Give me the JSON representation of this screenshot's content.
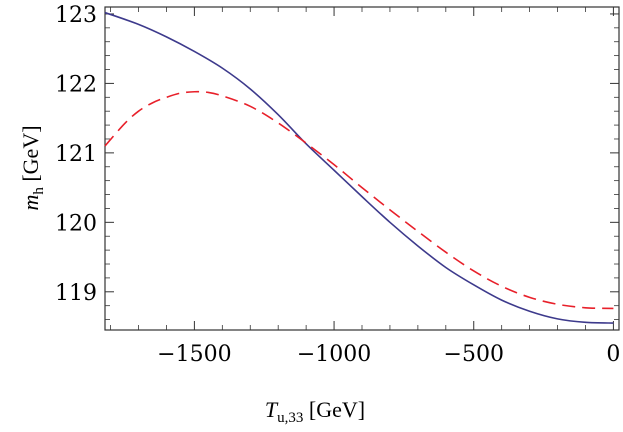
{
  "chart_data": {
    "type": "line",
    "title": "",
    "xlabel": {
      "symbol": "T",
      "subscript": "u,33",
      "unit": " [GeV]"
    },
    "ylabel": {
      "symbol": "m",
      "subscript": "h",
      "unit": " [GeV]"
    },
    "xlim": [
      -1820,
      20
    ],
    "ylim": [
      118.45,
      123.1
    ],
    "grid": false,
    "frame": true,
    "xticks": [
      -1500,
      -1000,
      -500,
      0
    ],
    "xtick_labels": [
      "−1500",
      "−1000",
      "−500",
      "0"
    ],
    "yticks": [
      119,
      120,
      121,
      122,
      123
    ],
    "ytick_labels": [
      "119",
      "120",
      "121",
      "122",
      "123"
    ],
    "series": [
      {
        "name": "solid",
        "color": "#3d3a8c",
        "dash": "solid",
        "x": [
          -1820,
          -1700,
          -1600,
          -1500,
          -1400,
          -1300,
          -1200,
          -1100,
          -1000,
          -900,
          -800,
          -700,
          -600,
          -500,
          -400,
          -300,
          -200,
          -100,
          0
        ],
        "y": [
          123.02,
          122.85,
          122.67,
          122.46,
          122.22,
          121.92,
          121.55,
          121.13,
          120.75,
          120.37,
          120.0,
          119.66,
          119.35,
          119.1,
          118.88,
          118.72,
          118.61,
          118.56,
          118.55
        ]
      },
      {
        "name": "dashed",
        "color": "#e8202a",
        "dash": "dashed",
        "x": [
          -1820,
          -1750,
          -1700,
          -1650,
          -1600,
          -1550,
          -1500,
          -1450,
          -1400,
          -1300,
          -1200,
          -1100,
          -1000,
          -900,
          -800,
          -700,
          -600,
          -500,
          -400,
          -300,
          -200,
          -100,
          0
        ],
        "y": [
          121.1,
          121.42,
          121.6,
          121.72,
          121.8,
          121.86,
          121.88,
          121.87,
          121.82,
          121.67,
          121.43,
          121.14,
          120.83,
          120.5,
          120.18,
          119.87,
          119.57,
          119.3,
          119.08,
          118.92,
          118.82,
          118.77,
          118.76
        ]
      }
    ]
  }
}
